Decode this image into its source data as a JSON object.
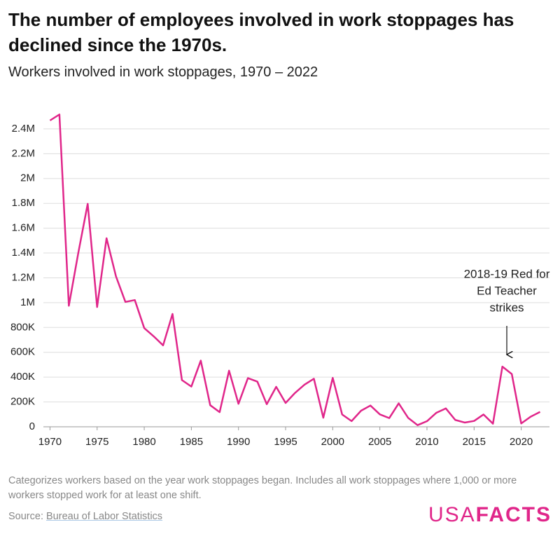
{
  "chart_data": {
    "type": "line",
    "title": "The number of employees involved in work stoppages has declined since the 1970s.",
    "subtitle": "Workers involved in work stoppages, 1970 – 2022",
    "x": [
      1970,
      1971,
      1972,
      1973,
      1974,
      1975,
      1976,
      1977,
      1978,
      1979,
      1980,
      1981,
      1982,
      1983,
      1984,
      1985,
      1986,
      1987,
      1988,
      1989,
      1990,
      1991,
      1992,
      1993,
      1994,
      1995,
      1996,
      1997,
      1998,
      1999,
      2000,
      2001,
      2002,
      2003,
      2004,
      2005,
      2006,
      2007,
      2008,
      2009,
      2010,
      2011,
      2012,
      2013,
      2014,
      2015,
      2016,
      2017,
      2018,
      2019,
      2020,
      2021,
      2022
    ],
    "series": [
      {
        "name": "Workers involved",
        "color": "#e0268a",
        "values": [
          2468000,
          2516000,
          975000,
          1400000,
          1796000,
          965000,
          1519000,
          1212000,
          1006000,
          1021000,
          795000,
          729000,
          656000,
          909000,
          376000,
          324000,
          533000,
          174000,
          118000,
          452000,
          185000,
          392000,
          364000,
          182000,
          322000,
          192000,
          273000,
          339000,
          387000,
          73000,
          394000,
          99000,
          46000,
          129000,
          171000,
          100000,
          70000,
          189000,
          72000,
          13000,
          45000,
          113000,
          148000,
          55000,
          34000,
          47000,
          99000,
          25000,
          485000,
          425000,
          27000,
          81000,
          120000
        ]
      }
    ],
    "xlim": [
      1969.3,
      2023.0
    ],
    "xticks": [
      1970,
      1975,
      1980,
      1985,
      1990,
      1995,
      2000,
      2005,
      2010,
      2015,
      2020
    ],
    "ylim": [
      0,
      2600000
    ],
    "yticks": [
      0,
      {
        "value": 200000,
        "label": "200K"
      },
      {
        "value": 400000,
        "label": "400K"
      },
      {
        "value": 600000,
        "label": "600K"
      },
      {
        "value": 800000,
        "label": "800K"
      },
      {
        "value": 1000000,
        "label": "1M"
      },
      {
        "value": 1200000,
        "label": "1.2M"
      },
      {
        "value": 1400000,
        "label": "1.4M"
      },
      {
        "value": 1600000,
        "label": "1.6M"
      },
      {
        "value": 1800000,
        "label": "1.8M"
      },
      {
        "value": 2000000,
        "label": "2M"
      },
      {
        "value": 2200000,
        "label": "2.2M"
      },
      {
        "value": 2400000,
        "label": "2.4M"
      }
    ],
    "grid": true,
    "annotation": [
      "2018-19 Red for",
      "Ed Teacher",
      "strikes"
    ],
    "note": "Categorizes workers based on the year work stoppages began. Includes all work stoppages where 1,000 or more workers stopped work for at least one shift.",
    "source_label": "Source:",
    "source_link": "Bureau of Labor Statistics",
    "logo": [
      "USA",
      "FACTS"
    ]
  }
}
